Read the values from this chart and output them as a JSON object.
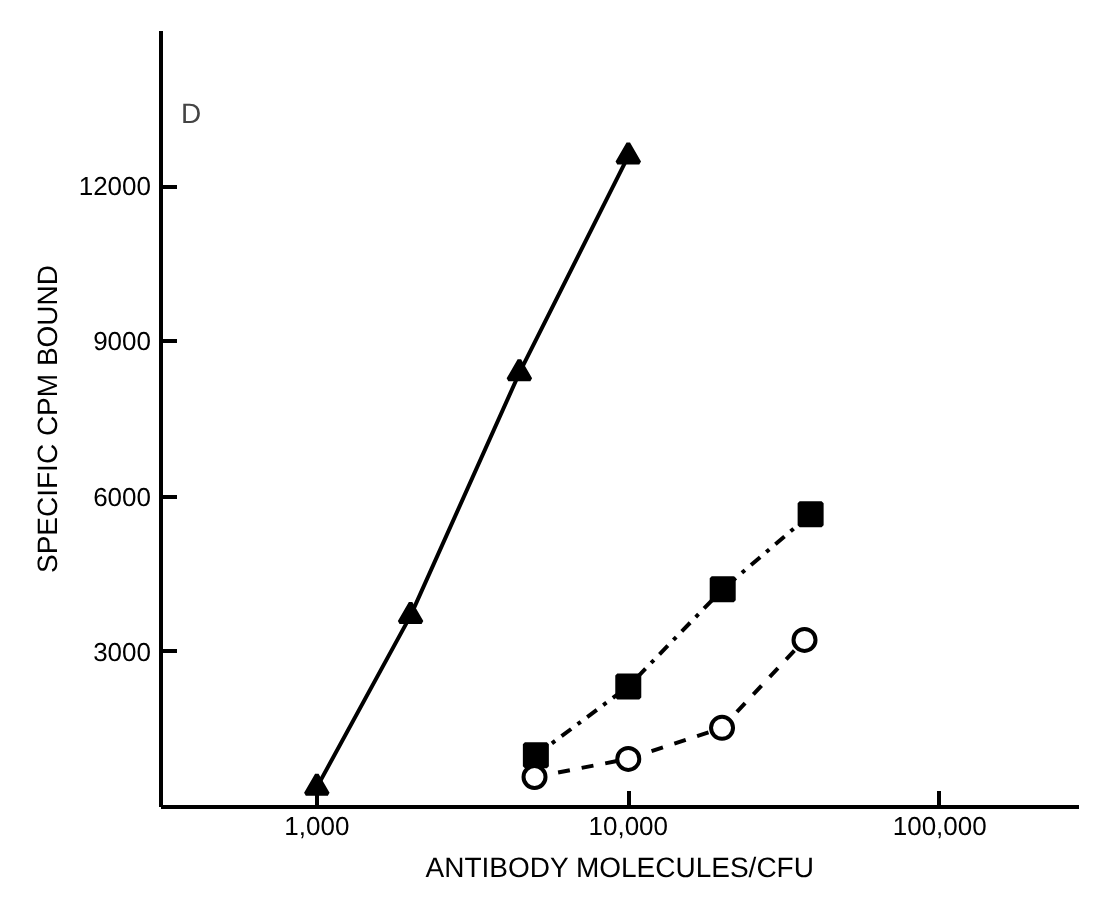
{
  "chart_data": {
    "type": "line",
    "xlabel": "ANTIBODY MOLECULES/CFU",
    "ylabel": "SPECIFIC CPM BOUND",
    "annotations": [
      "D"
    ],
    "log": "x",
    "xlim": [
      316,
      280000
    ],
    "ylim": [
      0,
      15000
    ],
    "xticks": [
      {
        "value": 1000,
        "label": "1,000"
      },
      {
        "value": 10000,
        "label": "10,000"
      },
      {
        "value": 100000,
        "label": "100,000"
      }
    ],
    "yticks": [
      3000,
      6000,
      9000,
      12000
    ],
    "grid": false,
    "series": [
      {
        "color": "#000000",
        "marker": "triangle",
        "line_style": "solid",
        "x": [
          1000,
          2000,
          4470,
          10000
        ],
        "values": [
          380,
          3700,
          8390,
          12580
        ]
      },
      {
        "color": "#000000",
        "marker": "square",
        "line_style": "dashdot",
        "x": [
          5050,
          10000,
          20100,
          38500
        ],
        "values": [
          1000,
          2330,
          4210,
          5660
        ]
      },
      {
        "color": "#000000",
        "marker": "circle_open",
        "line_style": "dashed",
        "x": [
          5000,
          10000,
          20000,
          36800
        ],
        "values": [
          580,
          930,
          1530,
          3230
        ]
      }
    ]
  }
}
